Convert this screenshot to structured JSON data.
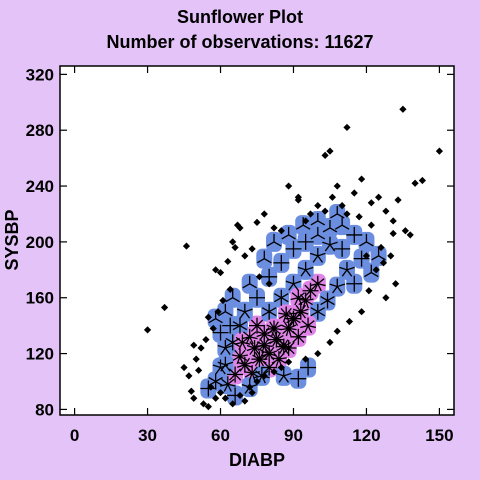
{
  "chart_data": {
    "type": "scatter",
    "variant": "sunflower",
    "title": "Sunflower Plot",
    "subtitle": "Number of observations: 11627",
    "xlabel": "DIABP",
    "ylabel": "SYSBP",
    "xlim": [
      -6,
      156
    ],
    "ylim": [
      76,
      326
    ],
    "xticks": [
      0,
      30,
      60,
      90,
      120,
      150
    ],
    "yticks": [
      80,
      120,
      160,
      200,
      240,
      280,
      320
    ],
    "grid": false,
    "colors": {
      "background": "#e4c4f8",
      "plot_background": "#ffffff",
      "single_point": "#000000",
      "low_density_fill": "#6b8ee0",
      "high_density_fill": "#e084e8",
      "petal": "#000000"
    },
    "high_density_region": {
      "x": [
        65,
        100
      ],
      "y": [
        105,
        175
      ]
    },
    "points": [
      [
        30,
        137
      ],
      [
        37,
        153
      ],
      [
        45,
        110
      ],
      [
        46,
        197
      ],
      [
        47,
        104
      ],
      [
        48,
        93
      ],
      [
        49,
        88
      ],
      [
        51,
        108
      ],
      [
        53,
        84
      ],
      [
        55,
        82
      ],
      [
        56,
        96
      ],
      [
        50,
        116
      ],
      [
        54,
        130
      ],
      [
        52,
        124
      ],
      [
        58,
        180
      ],
      [
        60,
        178
      ],
      [
        63,
        186
      ],
      [
        66,
        196
      ],
      [
        68,
        210
      ],
      [
        70,
        190
      ],
      [
        73,
        195
      ],
      [
        75,
        214
      ],
      [
        78,
        220
      ],
      [
        82,
        210
      ],
      [
        85,
        208
      ],
      [
        92,
        230
      ],
      [
        95,
        215
      ],
      [
        97,
        220
      ],
      [
        100,
        226
      ],
      [
        103,
        222
      ],
      [
        106,
        232
      ],
      [
        108,
        240
      ],
      [
        110,
        226
      ],
      [
        112,
        220
      ],
      [
        115,
        235
      ],
      [
        118,
        245
      ],
      [
        122,
        228
      ],
      [
        125,
        232
      ],
      [
        128,
        222
      ],
      [
        131,
        215
      ],
      [
        133,
        230
      ],
      [
        136,
        208
      ],
      [
        138,
        205
      ],
      [
        140,
        242
      ],
      [
        143,
        244
      ],
      [
        150,
        265
      ],
      [
        135,
        295
      ],
      [
        112,
        282
      ],
      [
        105,
        265
      ],
      [
        103,
        262
      ],
      [
        88,
        240
      ],
      [
        92,
        232
      ],
      [
        65,
        200
      ],
      [
        67,
        212
      ],
      [
        80,
        170
      ],
      [
        76,
        175
      ],
      [
        62,
        88
      ],
      [
        65,
        84
      ],
      [
        68,
        90
      ],
      [
        72,
        96
      ],
      [
        75,
        100
      ],
      [
        78,
        104
      ],
      [
        82,
        107
      ],
      [
        85,
        110
      ],
      [
        88,
        114
      ],
      [
        124,
        180
      ],
      [
        127,
        185
      ],
      [
        130,
        190
      ],
      [
        132,
        170
      ],
      [
        128,
        160
      ],
      [
        121,
        165
      ],
      [
        118,
        150
      ],
      [
        113,
        143
      ],
      [
        108,
        136
      ],
      [
        105,
        128
      ],
      [
        100,
        120
      ],
      [
        95,
        116
      ],
      [
        58,
        88
      ],
      [
        60,
        92
      ],
      [
        57,
        138
      ],
      [
        59,
        150
      ],
      [
        61,
        158
      ],
      [
        64,
        166
      ],
      [
        55,
        146
      ],
      [
        49,
        126
      ],
      [
        131,
        206
      ],
      [
        126,
        196
      ],
      [
        120,
        190
      ],
      [
        70,
        86
      ],
      [
        73,
        92
      ],
      [
        122,
        212
      ],
      [
        117,
        218
      ]
    ],
    "sunflowers": [
      [
        55,
        95,
        4
      ],
      [
        58,
        100,
        6
      ],
      [
        60,
        110,
        5
      ],
      [
        63,
        98,
        7
      ],
      [
        66,
        105,
        8
      ],
      [
        68,
        118,
        9
      ],
      [
        70,
        112,
        10
      ],
      [
        73,
        106,
        9
      ],
      [
        76,
        116,
        12
      ],
      [
        78,
        126,
        11
      ],
      [
        80,
        120,
        10
      ],
      [
        83,
        130,
        12
      ],
      [
        86,
        125,
        12
      ],
      [
        88,
        138,
        11
      ],
      [
        90,
        145,
        12
      ],
      [
        93,
        150,
        10
      ],
      [
        95,
        158,
        9
      ],
      [
        97,
        165,
        8
      ],
      [
        100,
        170,
        7
      ],
      [
        75,
        140,
        8
      ],
      [
        72,
        132,
        7
      ],
      [
        68,
        140,
        6
      ],
      [
        65,
        128,
        6
      ],
      [
        62,
        124,
        5
      ],
      [
        60,
        135,
        4
      ],
      [
        58,
        145,
        3
      ],
      [
        80,
        150,
        6
      ],
      [
        85,
        160,
        6
      ],
      [
        90,
        170,
        5
      ],
      [
        95,
        180,
        5
      ],
      [
        100,
        190,
        5
      ],
      [
        105,
        198,
        5
      ],
      [
        110,
        195,
        4
      ],
      [
        115,
        205,
        4
      ],
      [
        120,
        200,
        3
      ],
      [
        118,
        188,
        4
      ],
      [
        112,
        180,
        5
      ],
      [
        108,
        168,
        5
      ],
      [
        104,
        158,
        6
      ],
      [
        100,
        150,
        6
      ],
      [
        96,
        140,
        7
      ],
      [
        92,
        132,
        8
      ],
      [
        88,
        124,
        8
      ],
      [
        84,
        116,
        9
      ],
      [
        80,
        110,
        8
      ],
      [
        77,
        104,
        7
      ],
      [
        72,
        96,
        5
      ],
      [
        70,
        150,
        5
      ],
      [
        75,
        160,
        4
      ],
      [
        80,
        175,
        4
      ],
      [
        85,
        185,
        4
      ],
      [
        90,
        195,
        4
      ],
      [
        95,
        200,
        4
      ],
      [
        100,
        205,
        3
      ],
      [
        105,
        210,
        3
      ],
      [
        72,
        170,
        3
      ],
      [
        78,
        188,
        3
      ],
      [
        65,
        160,
        3
      ],
      [
        62,
        150,
        3
      ],
      [
        110,
        212,
        3
      ],
      [
        125,
        190,
        3
      ],
      [
        122,
        178,
        3
      ],
      [
        115,
        170,
        4
      ],
      [
        82,
        200,
        3
      ],
      [
        88,
        205,
        3
      ],
      [
        94,
        212,
        3
      ],
      [
        100,
        215,
        3
      ],
      [
        108,
        220,
        3
      ],
      [
        92,
        102,
        4
      ],
      [
        96,
        110,
        4
      ],
      [
        86,
        104,
        5
      ],
      [
        66,
        90,
        4
      ],
      [
        62,
        112,
        5
      ],
      [
        64,
        140,
        4
      ],
      [
        69,
        128,
        7
      ],
      [
        74,
        124,
        10
      ],
      [
        82,
        138,
        11
      ],
      [
        87,
        148,
        9
      ],
      [
        78,
        134,
        10
      ],
      [
        92,
        160,
        7
      ]
    ]
  }
}
